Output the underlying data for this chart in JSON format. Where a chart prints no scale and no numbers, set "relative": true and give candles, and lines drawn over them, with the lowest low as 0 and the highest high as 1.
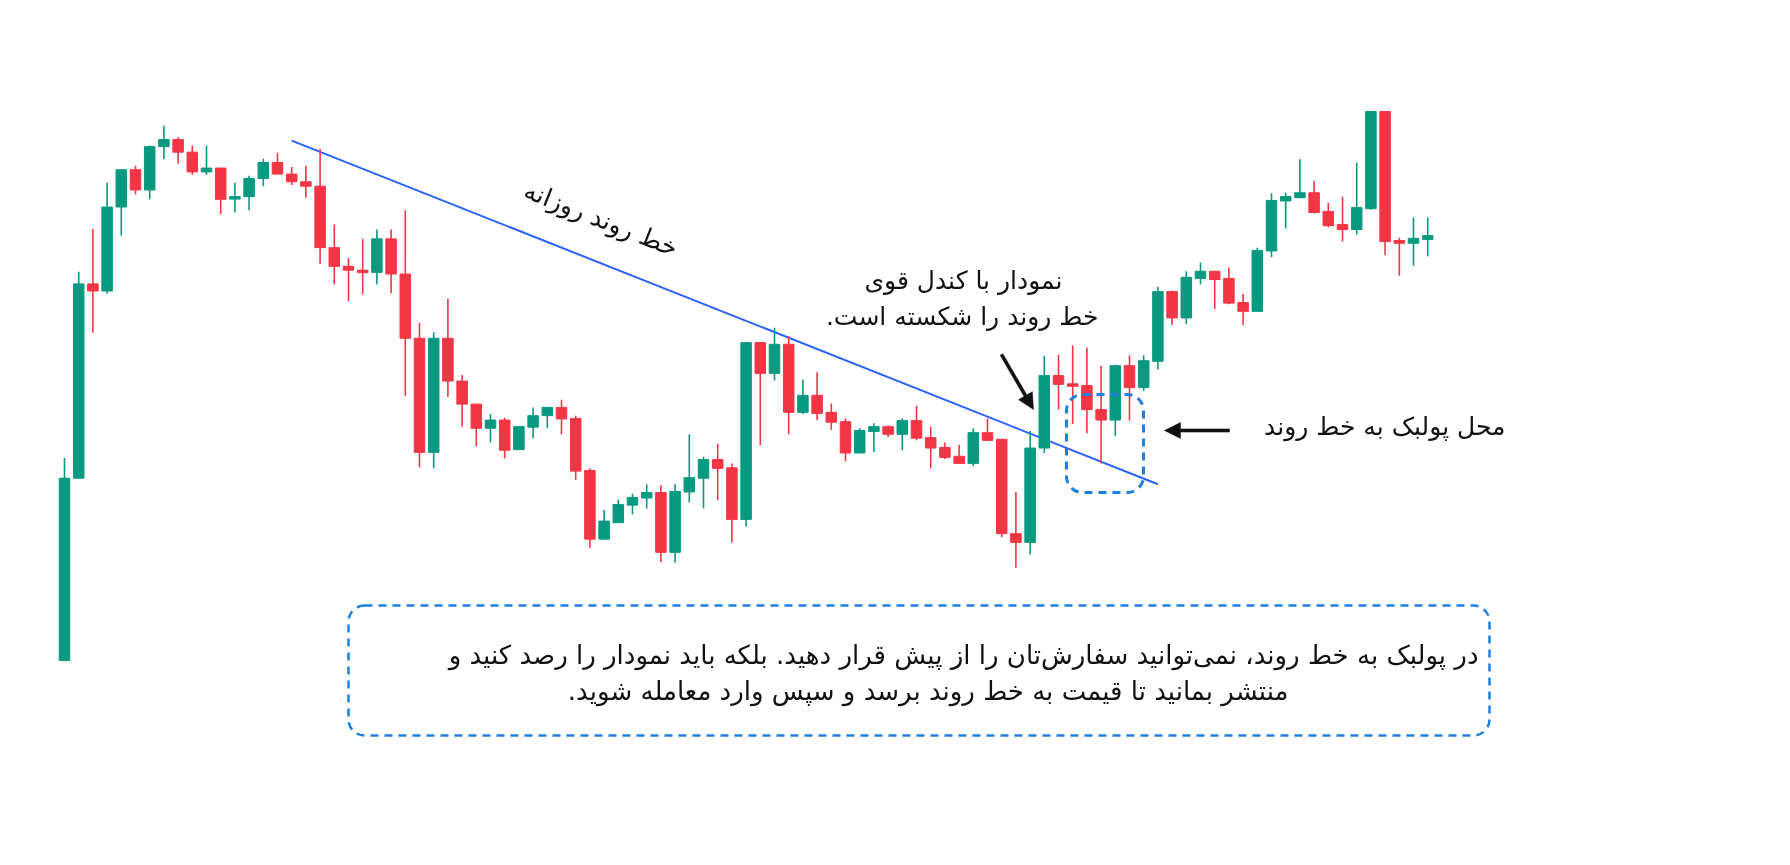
{
  "chart_data": {
    "type": "candlestick",
    "relative": true,
    "categories": [
      null,
      null,
      null,
      null,
      null,
      null,
      null,
      null,
      null,
      null,
      null,
      null,
      null,
      null,
      null,
      null,
      null,
      null,
      null,
      null,
      null,
      null,
      null,
      null,
      null,
      null,
      null,
      null,
      null,
      null,
      null,
      null,
      null,
      null,
      null,
      null,
      null,
      null,
      null,
      null,
      null,
      null,
      null,
      null,
      null,
      null,
      null,
      null,
      null,
      null,
      null,
      null,
      null,
      null,
      null,
      null,
      null,
      null,
      null,
      null,
      null,
      null,
      null,
      null,
      null,
      null,
      null,
      null,
      null,
      null,
      null,
      null,
      null,
      null,
      null,
      null,
      null,
      null,
      null,
      null,
      null,
      null,
      null,
      null,
      null,
      null,
      null,
      null,
      null,
      null,
      null,
      null,
      null,
      null,
      null,
      null,
      null
    ],
    "ohlc": [
      [
        0,
        0.369,
        0,
        0.332
      ],
      [
        0.332,
        0.708,
        0.332,
        0.686
      ],
      [
        0.686,
        0.786,
        0.597,
        0.673
      ],
      [
        0.673,
        0.87,
        0.668,
        0.826
      ],
      [
        0.826,
        0.895,
        0.774,
        0.894
      ],
      [
        0.894,
        0.901,
        0.849,
        0.857
      ],
      [
        0.857,
        0.938,
        0.84,
        0.936
      ],
      [
        0.936,
        0.974,
        0.913,
        0.949
      ],
      [
        0.949,
        0.953,
        0.905,
        0.926
      ],
      [
        0.926,
        0.938,
        0.885,
        0.89
      ],
      [
        0.89,
        0.938,
        0.885,
        0.897
      ],
      [
        0.897,
        0.897,
        0.813,
        0.84
      ],
      [
        0.841,
        0.87,
        0.816,
        0.845
      ],
      [
        0.845,
        0.883,
        0.82,
        0.878
      ],
      [
        0.878,
        0.914,
        0.864,
        0.907
      ],
      [
        0.907,
        0.925,
        0.886,
        0.886
      ],
      [
        0.886,
        0.899,
        0.866,
        0.872
      ],
      [
        0.872,
        0.901,
        0.843,
        0.864
      ],
      [
        0.864,
        0.932,
        0.722,
        0.752
      ],
      [
        0.752,
        0.794,
        0.685,
        0.718
      ],
      [
        0.718,
        0.733,
        0.654,
        0.711
      ],
      [
        0.711,
        0.768,
        0.667,
        0.707
      ],
      [
        0.707,
        0.785,
        0.685,
        0.768
      ],
      [
        0.768,
        0.785,
        0.669,
        0.704
      ],
      [
        0.704,
        0.82,
        0.482,
        0.587
      ],
      [
        0.587,
        0.615,
        0.352,
        0.379
      ],
      [
        0.379,
        0.598,
        0.35,
        0.587
      ],
      [
        0.587,
        0.659,
        0.48,
        0.509
      ],
      [
        0.509,
        0.52,
        0.426,
        0.467
      ],
      [
        0.467,
        0.467,
        0.39,
        0.423
      ],
      [
        0.423,
        0.449,
        0.397,
        0.438
      ],
      [
        0.438,
        0.442,
        0.368,
        0.383
      ],
      [
        0.384,
        0.426,
        0.384,
        0.426
      ],
      [
        0.425,
        0.461,
        0.405,
        0.446
      ],
      [
        0.446,
        0.461,
        0.423,
        0.461
      ],
      [
        0.461,
        0.475,
        0.412,
        0.44
      ],
      [
        0.441,
        0.446,
        0.329,
        0.345
      ],
      [
        0.346,
        0.35,
        0.205,
        0.221
      ],
      [
        0.221,
        0.274,
        0.221,
        0.254
      ],
      [
        0.251,
        0.293,
        0.251,
        0.284
      ],
      [
        0.283,
        0.304,
        0.266,
        0.297
      ],
      [
        0.296,
        0.321,
        0.277,
        0.306
      ],
      [
        0.306,
        0.319,
        0.179,
        0.197
      ],
      [
        0.197,
        0.321,
        0.178,
        0.308
      ],
      [
        0.307,
        0.412,
        0.288,
        0.333
      ],
      [
        0.332,
        0.371,
        0.277,
        0.366
      ],
      [
        0.366,
        0.395,
        0.292,
        0.35
      ],
      [
        0.351,
        0.359,
        0.215,
        0.257
      ],
      [
        0.257,
        0.58,
        0.244,
        0.579
      ],
      [
        0.579,
        0.58,
        0.392,
        0.523
      ],
      [
        0.523,
        0.606,
        0.51,
        0.576
      ],
      [
        0.576,
        0.591,
        0.412,
        0.452
      ],
      [
        0.452,
        0.512,
        0.449,
        0.483
      ],
      [
        0.483,
        0.525,
        0.438,
        0.45
      ],
      [
        0.452,
        0.468,
        0.42,
        0.434
      ],
      [
        0.435,
        0.441,
        0.363,
        0.378
      ],
      [
        0.378,
        0.423,
        0.378,
        0.419
      ],
      [
        0.417,
        0.432,
        0.38,
        0.426
      ],
      [
        0.426,
        0.428,
        0.407,
        0.412
      ],
      [
        0.412,
        0.441,
        0.383,
        0.437
      ],
      [
        0.437,
        0.464,
        0.401,
        0.405
      ],
      [
        0.406,
        0.426,
        0.35,
        0.387
      ],
      [
        0.388,
        0.397,
        0.367,
        0.37
      ],
      [
        0.372,
        0.393,
        0.358,
        0.359
      ],
      [
        0.359,
        0.423,
        0.354,
        0.415
      ],
      [
        0.415,
        0.441,
        0.401,
        0.401
      ],
      [
        0.403,
        0.403,
        0.225,
        0.231
      ],
      [
        0.231,
        0.307,
        0.169,
        0.215
      ],
      [
        0.215,
        0.418,
        0.193,
        0.387
      ],
      [
        0.387,
        0.555,
        0.378,
        0.519
      ],
      [
        0.519,
        0.557,
        0.457,
        0.503
      ],
      [
        0.504,
        0.574,
        0.431,
        0.5
      ],
      [
        0.501,
        0.57,
        0.414,
        0.457
      ],
      [
        0.457,
        0.537,
        0.359,
        0.438
      ],
      [
        0.438,
        0.539,
        0.409,
        0.537
      ],
      [
        0.537,
        0.556,
        0.437,
        0.497
      ],
      [
        0.497,
        0.556,
        0.491,
        0.546
      ],
      [
        0.545,
        0.681,
        0.53,
        0.672
      ],
      [
        0.672,
        0.674,
        0.611,
        0.624
      ],
      [
        0.624,
        0.709,
        0.613,
        0.698
      ],
      [
        0.696,
        0.725,
        0.685,
        0.709
      ],
      [
        0.709,
        0.709,
        0.64,
        0.694
      ],
      [
        0.696,
        0.716,
        0.649,
        0.651
      ],
      [
        0.652,
        0.668,
        0.611,
        0.636
      ],
      [
        0.636,
        0.752,
        0.636,
        0.747
      ],
      [
        0.746,
        0.851,
        0.735,
        0.838
      ],
      [
        0.837,
        0.852,
        0.787,
        0.845
      ],
      [
        0.843,
        0.913,
        0.843,
        0.852
      ],
      [
        0.852,
        0.874,
        0.814,
        0.816
      ],
      [
        0.818,
        0.834,
        0.789,
        0.792
      ],
      [
        0.794,
        0.845,
        0.763,
        0.785
      ],
      [
        0.785,
        0.907,
        0.776,
        0.825
      ],
      [
        0.823,
        1,
        0.821,
        1
      ],
      [
        1,
        1,
        0.738,
        0.763
      ],
      [
        0.765,
        0.77,
        0.701,
        0.76
      ],
      [
        0.76,
        0.807,
        0.719,
        0.769
      ],
      [
        0.767,
        0.807,
        0.736,
        0.774
      ]
    ],
    "colors": [
      "#089981",
      "#089981",
      "#f23645",
      "#089981",
      "#089981",
      "#f23645",
      "#089981",
      "#089981",
      "#f23645",
      "#f23645",
      "#089981",
      "#f23645",
      "#089981",
      "#089981",
      "#089981",
      "#f23645",
      "#f23645",
      "#f23645",
      "#f23645",
      "#f23645",
      "#f23645",
      "#f23645",
      "#089981",
      "#f23645",
      "#f23645",
      "#f23645",
      "#089981",
      "#f23645",
      "#f23645",
      "#f23645",
      "#089981",
      "#f23645",
      "#089981",
      "#089981",
      "#089981",
      "#f23645",
      "#f23645",
      "#f23645",
      "#089981",
      "#089981",
      "#089981",
      "#089981",
      "#f23645",
      "#089981",
      "#089981",
      "#089981",
      "#f23645",
      "#f23645",
      "#089981",
      "#f23645",
      "#089981",
      "#f23645",
      "#089981",
      "#f23645",
      "#f23645",
      "#f23645",
      "#089981",
      "#089981",
      "#f23645",
      "#089981",
      "#f23645",
      "#f23645",
      "#f23645",
      "#f23645",
      "#089981",
      "#f23645",
      "#f23645",
      "#f23645",
      "#089981",
      "#089981",
      "#f23645",
      "#f23645",
      "#f23645",
      "#f23645",
      "#089981",
      "#f23645",
      "#089981",
      "#089981",
      "#f23645",
      "#089981",
      "#089981",
      "#f23645",
      "#f23645",
      "#f23645",
      "#089981",
      "#089981",
      "#089981",
      "#089981",
      "#f23645",
      "#f23645",
      "#f23645",
      "#089981",
      "#089981",
      "#f23645",
      "#f23645",
      "#089981",
      "#089981"
    ],
    "series": [
      {
        "type": "line",
        "name": "خط روند روزانه",
        "color": "#2962ff",
        "values": [
          null,
          null,
          null,
          null,
          null,
          null,
          null,
          null,
          null,
          null,
          null,
          null,
          null,
          null,
          null,
          null,
          0.947,
          null,
          null,
          null,
          null,
          null,
          null,
          null,
          null,
          null,
          null,
          null,
          null,
          null,
          null,
          null,
          null,
          null,
          null,
          null,
          null,
          null,
          null,
          null,
          null,
          null,
          null,
          null,
          null,
          null,
          null,
          null,
          null,
          null,
          null,
          null,
          null,
          null,
          null,
          null,
          null,
          null,
          null,
          null,
          null,
          null,
          null,
          null,
          null,
          null,
          null,
          null,
          null,
          null,
          null,
          null,
          null,
          null,
          null,
          null,
          null,
          0.321,
          null,
          null,
          null,
          null,
          null,
          null,
          null,
          null,
          null,
          null,
          null,
          null,
          null,
          null,
          null,
          null,
          null,
          null,
          null
        ]
      }
    ],
    "annotations": [
      "نمودار با کندل قوی\nخط روند را شکسته است.",
      "محل پولبک به خط روند",
      "در پولبک به خط روند، نمی‌توانید سفارش‌تان را از پیش قرار دهید. بلکه باید نمودار را رصد کنید و\nمنتشر بمانید تا قیمت به خط روند برسد و سپس وارد معامله شوید."
    ]
  }
}
